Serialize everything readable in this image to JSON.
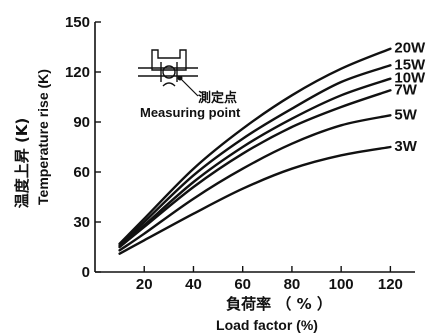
{
  "chart_data": {
    "type": "line",
    "xlabel_jp": "負荷率 （ % ）",
    "xlabel_en": "Load factor (%)",
    "ylabel_jp": "温度上昇 (K)",
    "ylabel_en": "Temperature rise (K)",
    "xlim": [
      0,
      130
    ],
    "ylim": [
      0,
      150
    ],
    "x_ticks": [
      20,
      40,
      60,
      80,
      100,
      120
    ],
    "y_ticks": [
      0,
      30,
      60,
      90,
      120,
      150
    ],
    "grid": false,
    "legend_placement": "inline-right",
    "inset": {
      "label_jp": "測定点",
      "label_en": "Measuring point"
    },
    "series": [
      {
        "name": "20W",
        "x": [
          10,
          20,
          40,
          60,
          80,
          100,
          120
        ],
        "y": [
          17,
          32,
          62,
          86,
          106,
          122,
          134
        ]
      },
      {
        "name": "15W",
        "x": [
          10,
          20,
          40,
          60,
          80,
          100,
          120
        ],
        "y": [
          16,
          30,
          58,
          80,
          98,
          114,
          124
        ]
      },
      {
        "name": "10W",
        "x": [
          10,
          20,
          40,
          60,
          80,
          100,
          120
        ],
        "y": [
          15,
          28,
          54,
          75,
          92,
          106,
          116
        ]
      },
      {
        "name": "7W",
        "x": [
          10,
          20,
          40,
          60,
          80,
          100,
          120
        ],
        "y": [
          15,
          27,
          51,
          71,
          87,
          99,
          109
        ]
      },
      {
        "name": "5W",
        "x": [
          10,
          20,
          40,
          60,
          80,
          100,
          120
        ],
        "y": [
          13,
          23,
          44,
          62,
          77,
          88,
          94
        ]
      },
      {
        "name": "3W",
        "x": [
          10,
          20,
          40,
          60,
          80,
          100,
          120
        ],
        "y": [
          11,
          19,
          35,
          50,
          62,
          70,
          75
        ]
      }
    ]
  }
}
